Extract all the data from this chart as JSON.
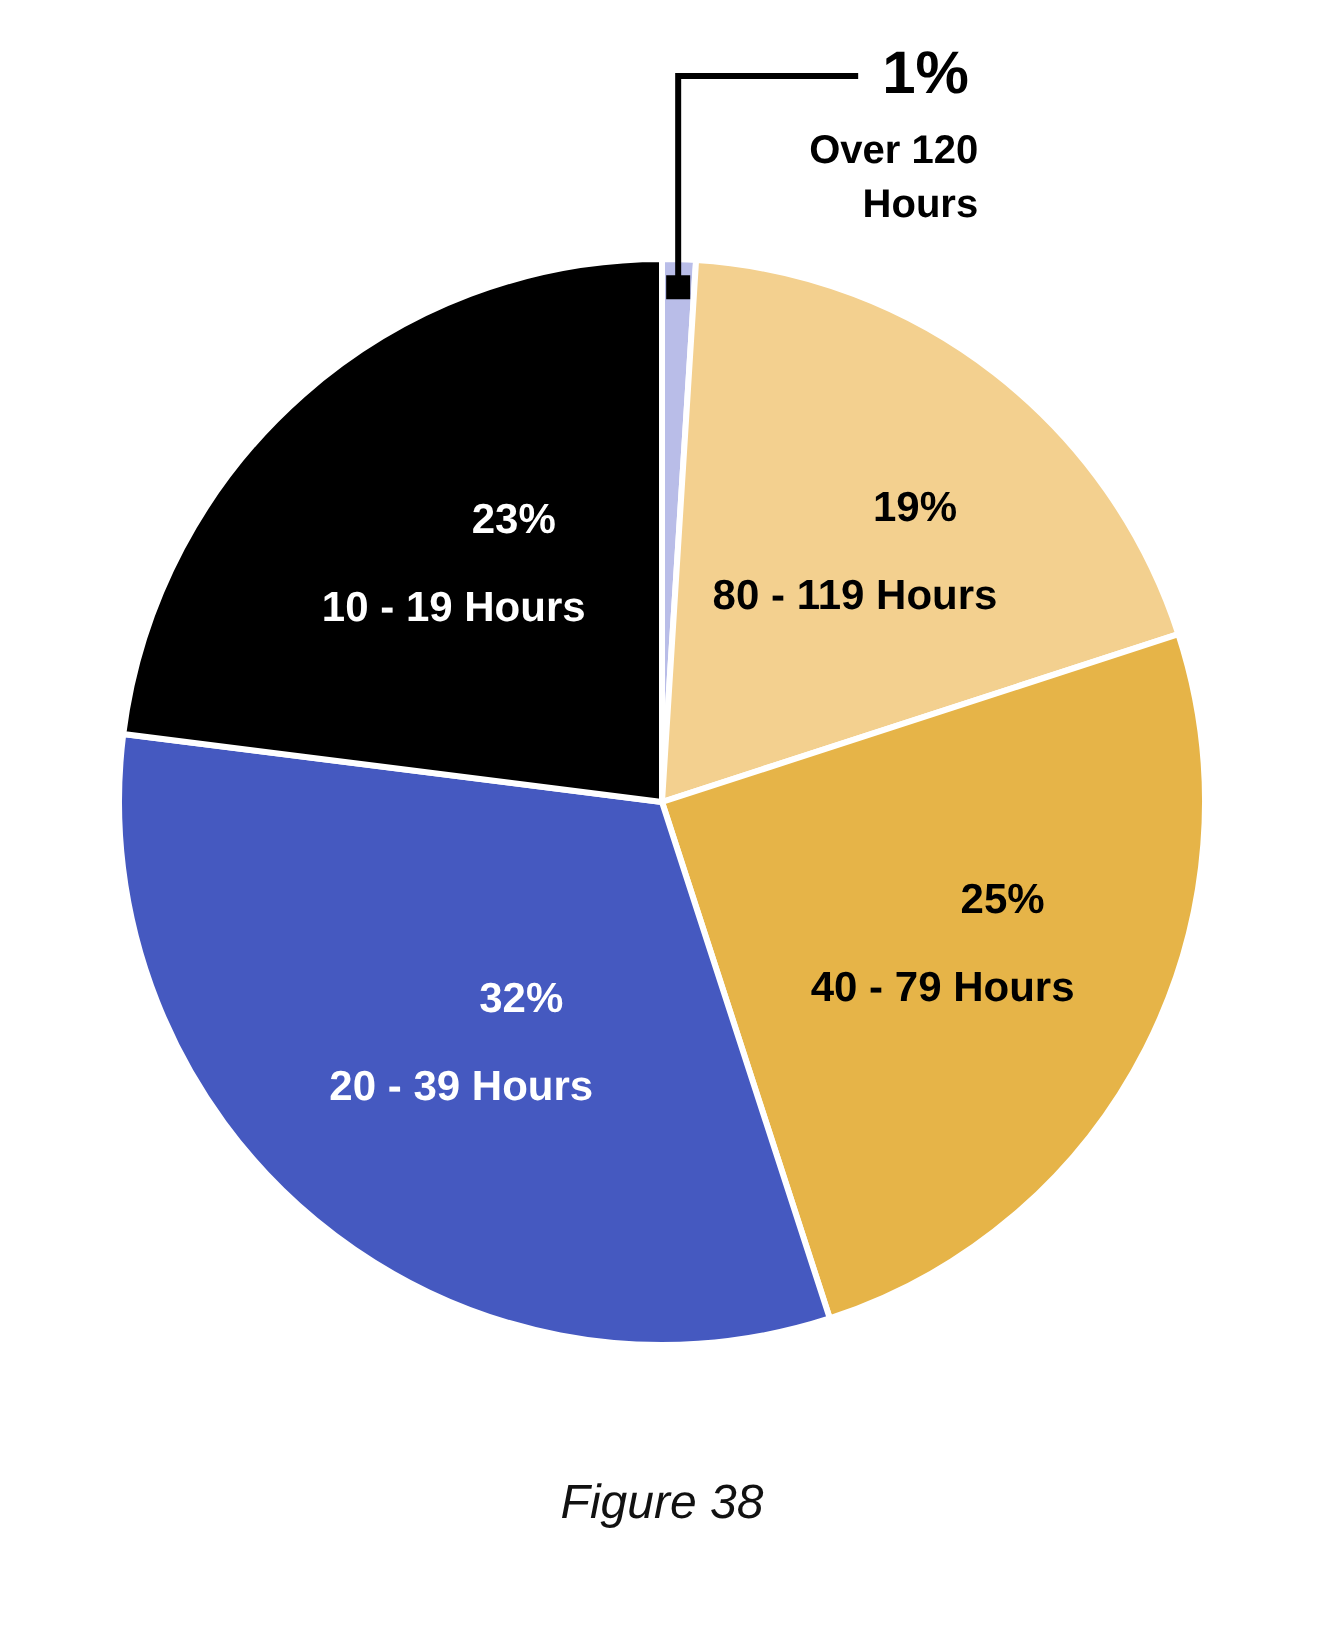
{
  "chart_data": {
    "type": "pie",
    "categories": [
      "Over 120 Hours",
      "80 - 119 Hours",
      "40 - 79 Hours",
      "20 - 39 Hours",
      "10 - 19 Hours"
    ],
    "values": [
      1,
      19,
      25,
      32,
      23
    ],
    "colors": [
      "#b9bde8",
      "#f3d08f",
      "#e6b448",
      "#4559c0",
      "#000000"
    ],
    "value_labels": [
      "1%",
      "19%",
      "25%",
      "32%",
      "23%"
    ],
    "legend": false,
    "annotations": [
      "Figure 38"
    ]
  }
}
